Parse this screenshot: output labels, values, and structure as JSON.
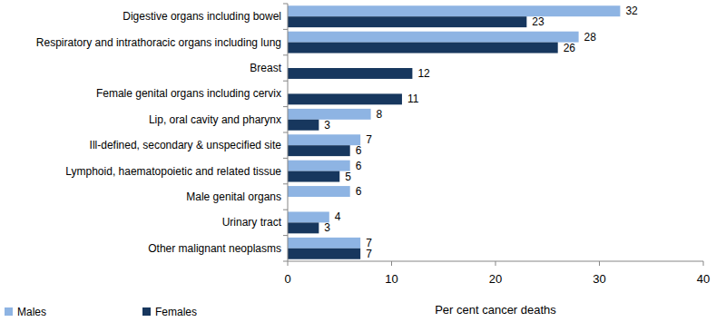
{
  "chart_data": {
    "type": "bar",
    "orientation": "horizontal",
    "categories": [
      "Digestive organs including bowel",
      "Respiratory and intrathoracic organs including lung",
      "Breast",
      "Female genital organs including cervix",
      "Lip, oral cavity and pharynx",
      "Ill-defined, secondary & unspecified site",
      "Lymphoid, haematopoietic and related tissue",
      "Male genital organs",
      "Urinary tract",
      "Other malignant neoplasms"
    ],
    "series": [
      {
        "name": "Males",
        "color": "#8eb4e3",
        "values": [
          32,
          28,
          null,
          null,
          8,
          7,
          6,
          6,
          4,
          7
        ]
      },
      {
        "name": "Females",
        "color": "#17375e",
        "values": [
          23,
          26,
          12,
          11,
          3,
          6,
          5,
          null,
          3,
          7
        ]
      }
    ],
    "x_label": "Per cent cancer deaths",
    "xlim": [
      0,
      40
    ],
    "xticks": [
      0,
      10,
      20,
      30,
      40
    ],
    "grid": false,
    "data_labels": true,
    "legend": "bottom"
  }
}
